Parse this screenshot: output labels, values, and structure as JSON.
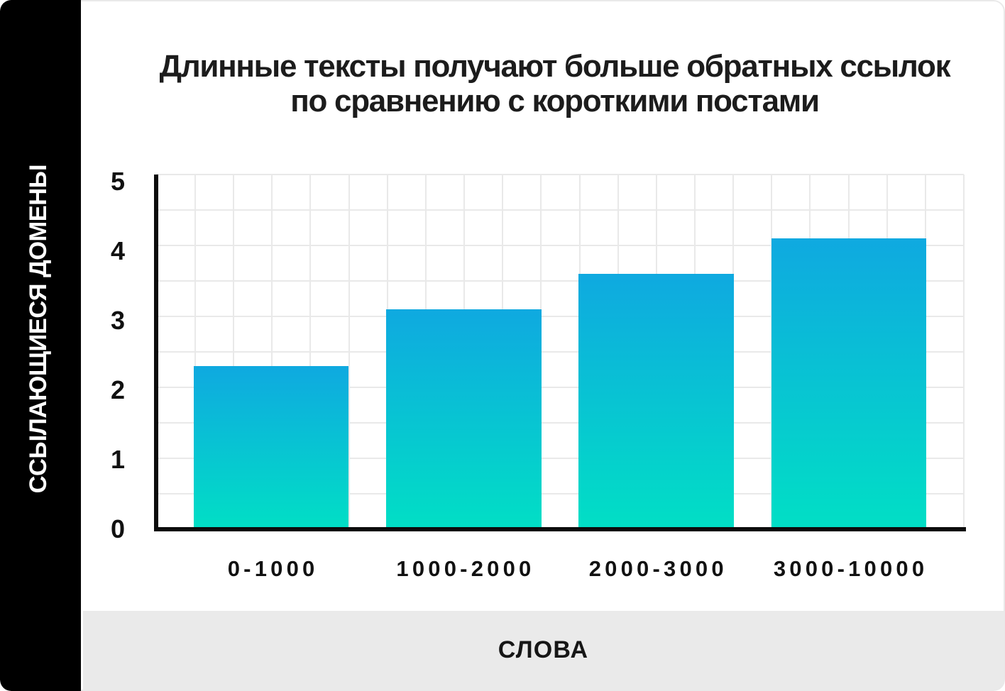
{
  "title": {
    "line1": "Длинные тексты получают больше обратных ссылок",
    "line2": "по сравнению с короткими постами"
  },
  "y_axis_title": "ССЫЛАЮЩИЕСЯ ДОМЕНЫ",
  "x_axis_title": "СЛОВА",
  "colors": {
    "bar_gradient_top": "#0fa9e0",
    "bar_gradient_bottom": "#01dfc5",
    "sidebar_bg": "#000000",
    "footer_bg": "#eaeaea",
    "grid": "#e9e9e9",
    "axis": "#0b0b0b",
    "text": "#111111"
  },
  "chart_data": {
    "type": "bar",
    "categories": [
      "0-1000",
      "1000-2000",
      "2000-3000",
      "3000-10000"
    ],
    "values": [
      2.3,
      3.1,
      3.6,
      4.1
    ],
    "title": "Длинные тексты получают больше обратных ссылок по сравнению с короткими постами",
    "xlabel": "СЛОВА",
    "ylabel": "ССЫЛАЮЩИЕСЯ ДОМЕНЫ",
    "ylim": [
      0,
      5
    ],
    "yticks": [
      0,
      1,
      2,
      3,
      4,
      5
    ],
    "grid": true,
    "legend": false
  }
}
